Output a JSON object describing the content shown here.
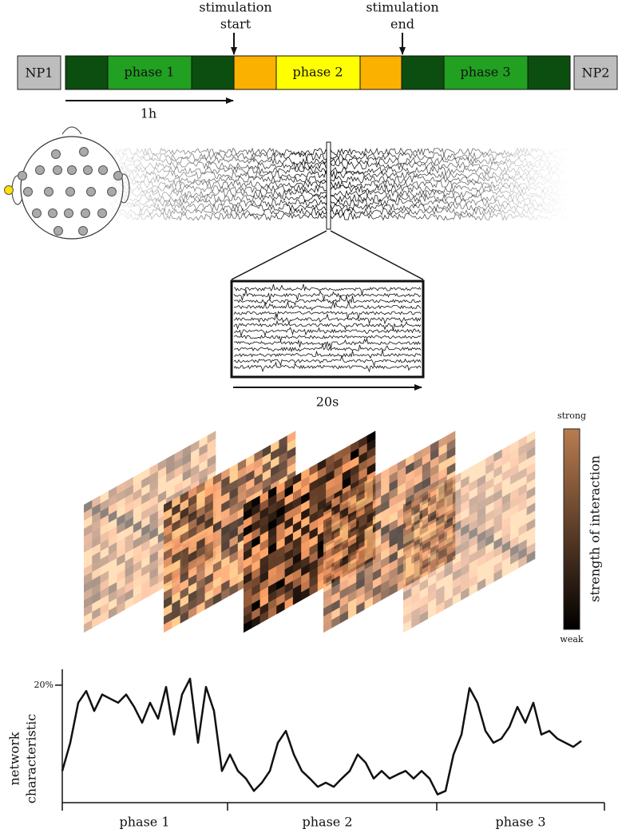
{
  "timeline": {
    "stim_start": [
      "stimulation",
      "start"
    ],
    "stim_end": [
      "stimulation",
      "end"
    ],
    "np1": "NP1",
    "np2": "NP2",
    "phases": [
      "phase 1",
      "phase 2",
      "phase 3"
    ],
    "duration": "1h"
  },
  "zoom": {
    "duration": "20s"
  },
  "colorbar": {
    "top": "strong",
    "bottom": "weak",
    "label": "strength of interaction"
  },
  "chart_data": {
    "type": "line",
    "ylabel": [
      "network",
      "characteristic"
    ],
    "xlabels": [
      "phase 1",
      "phase 2",
      "phase 3"
    ],
    "ylim": [
      0,
      22.7
    ],
    "yticks": [
      {
        "value": 20,
        "label": "20%"
      }
    ],
    "color": "#111111",
    "values": [
      5.4,
      10.2,
      17.0,
      19.0,
      15.6,
      18.4,
      17.7,
      17.0,
      18.4,
      16.3,
      13.6,
      17.0,
      14.3,
      19.7,
      11.6,
      18.4,
      21.1,
      10.2,
      19.7,
      15.6,
      5.4,
      8.2,
      5.4,
      4.1,
      2.0,
      3.4,
      5.4,
      10.2,
      12.2,
      8.2,
      5.4,
      4.1,
      2.7,
      3.4,
      2.7,
      4.1,
      5.4,
      8.2,
      6.8,
      4.1,
      5.4,
      4.1,
      4.8,
      5.4,
      4.1,
      5.4,
      4.1,
      1.4,
      2.0,
      8.2,
      11.6,
      19.5,
      17.0,
      12.2,
      10.2,
      10.9,
      12.9,
      16.3,
      13.6,
      17.0,
      11.6,
      12.2,
      10.9,
      10.2,
      9.5,
      10.5
    ]
  }
}
